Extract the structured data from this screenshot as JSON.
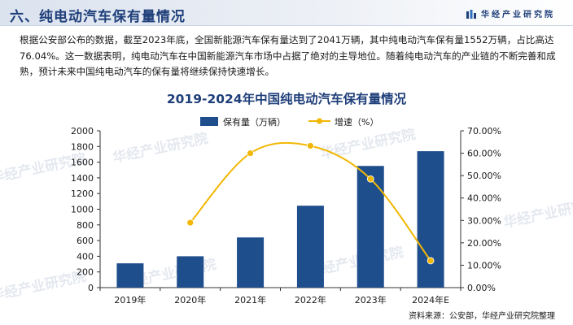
{
  "header": {
    "title": "六、纯电动汽车保有量情况",
    "brand": "华经产业研究院"
  },
  "intro": "根据公安部公布的数据，截至2023年底，全国新能源汽车保有量达到了2041万辆，其中纯电动汽车保有量1552万辆，占比高达76.04%。这一数据表明，纯电动汽车在中国新能源汽车市场中占据了绝对的主导地位。随着纯电动汽车的产业链的不断完善和成熟，预计未来中国纯电动汽车的保有量将继续保持快速增长。",
  "watermark": "华经产业研究院",
  "source": "资料来源：公安部，华经产业研究院整理",
  "colors": {
    "bar": "#1f4e8c",
    "line": "#f2b705",
    "title": "#1f3f7a"
  },
  "chart_data": {
    "type": "bar",
    "title": "2019-2024年中国纯电动汽车保有量情况",
    "categories": [
      "2019年",
      "2020年",
      "2021年",
      "2022年",
      "2023年",
      "2024年E"
    ],
    "series": [
      {
        "name": "保有量（万辆）",
        "type": "bar",
        "axis": "left",
        "values": [
          310,
          400,
          640,
          1045,
          1552,
          1740
        ]
      },
      {
        "name": "增速（%）",
        "type": "line",
        "axis": "right",
        "smooth": true,
        "values": [
          null,
          29.0,
          60.0,
          63.3,
          48.5,
          12.0
        ]
      }
    ],
    "y_left": {
      "min": 0,
      "max": 2000,
      "step": 200,
      "ticks": [
        "0",
        "200",
        "400",
        "600",
        "800",
        "1000",
        "1200",
        "1400",
        "1600",
        "1800",
        "2000"
      ]
    },
    "y_right": {
      "min": 0,
      "max": 70,
      "step": 10,
      "ticks": [
        "0.00%",
        "10.00%",
        "20.00%",
        "30.00%",
        "40.00%",
        "50.00%",
        "60.00%",
        "70.00%"
      ]
    },
    "legend_position": "top-center",
    "grid": false
  }
}
